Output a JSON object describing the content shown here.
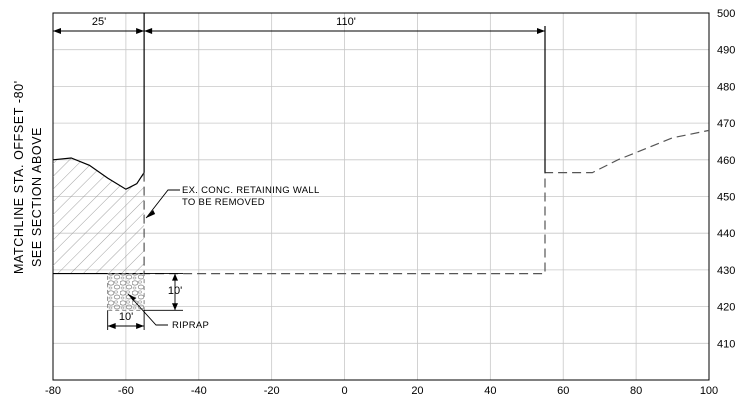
{
  "side_label": {
    "line1": "MATCHLINE STA. OFFSET -80'",
    "line2": "SEE SECTION ABOVE"
  },
  "dimensions": {
    "width_left": "25'",
    "width_main": "110'",
    "riprap_height": "10'",
    "riprap_width": "10'"
  },
  "annotations": {
    "wall_line1": "EX. CONC. RETAINING WALL",
    "wall_line2": "TO BE REMOVED",
    "riprap": "RIPRAP"
  },
  "chart_data": {
    "type": "line",
    "xlim": [
      -80,
      100
    ],
    "ylim": [
      400,
      500
    ],
    "x_ticks": [
      -80,
      -60,
      -40,
      -20,
      0,
      20,
      40,
      60,
      80,
      100
    ],
    "x_tick_labels": [
      "-80",
      "-60",
      "-40",
      "-20",
      "0",
      "20",
      "40",
      "60",
      "80",
      "100"
    ],
    "y_ticks": [
      410,
      420,
      430,
      440,
      450,
      460,
      470,
      480,
      490,
      500
    ],
    "y_tick_labels": [
      "410",
      "420",
      "430",
      "440",
      "450",
      "460",
      "470",
      "480",
      "490",
      "500"
    ],
    "grid": true,
    "series": [
      {
        "style": "solid",
        "x": [
          -80,
          -75,
          -70,
          -65,
          -60,
          -57,
          -55
        ],
        "y": [
          460,
          460.5,
          458.5,
          455,
          452,
          453.5,
          456.5
        ]
      },
      {
        "style": "dashed",
        "x": [
          -55,
          -55,
          -55,
          55,
          55,
          55,
          68,
          75,
          90,
          100
        ],
        "y": [
          456.5,
          429,
          429,
          429,
          429,
          456.5,
          456.5,
          460,
          466,
          468
        ]
      }
    ]
  }
}
